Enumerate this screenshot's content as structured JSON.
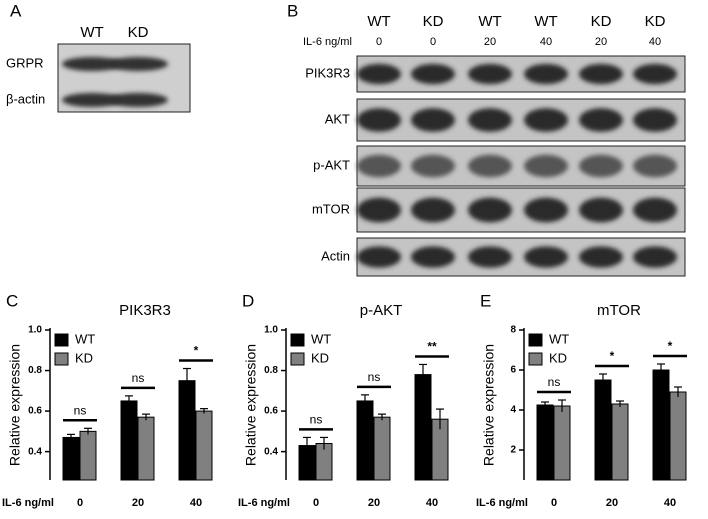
{
  "panel_a": {
    "label": "A",
    "lanes": [
      "WT",
      "KD"
    ],
    "rows": [
      "GRPR",
      "β-actin"
    ]
  },
  "panel_b": {
    "label": "B",
    "lanes": [
      "WT",
      "KD",
      "WT",
      "WT",
      "KD",
      "KD"
    ],
    "treatment_label": "IL-6 ng/ml",
    "doses": [
      0,
      0,
      20,
      40,
      20,
      40
    ],
    "rows": [
      "PIK3R3",
      "AKT",
      "p-AKT",
      "mTOR",
      "Actin"
    ]
  },
  "chart_data": [
    {
      "type": "bar",
      "panel": "C",
      "title": "PIK3R3",
      "y_label": "Relative expression",
      "x_label": "IL-6 ng/ml",
      "categories": [
        "0",
        "20",
        "40"
      ],
      "series": [
        {
          "name": "WT",
          "color": "#000000",
          "values": [
            0.47,
            0.65,
            0.75
          ],
          "errors": [
            0.015,
            0.025,
            0.06
          ]
        },
        {
          "name": "KD",
          "color": "#808080",
          "values": [
            0.5,
            0.57,
            0.6
          ],
          "errors": [
            0.015,
            0.015,
            0.012
          ]
        }
      ],
      "annotations": [
        "ns",
        "ns",
        "*"
      ],
      "ylim": [
        0.26,
        1.0
      ],
      "yticks": [
        0.4,
        0.6,
        0.8,
        {
          "value": 1,
          "label": "1.0"
        }
      ],
      "legend": "top-left"
    },
    {
      "type": "bar",
      "panel": "D",
      "title": "p-AKT",
      "y_label": "Relative expression",
      "x_label": "IL-6 ng/ml",
      "categories": [
        "0",
        "20",
        "40"
      ],
      "series": [
        {
          "name": "WT",
          "color": "#000000",
          "values": [
            0.43,
            0.65,
            0.78
          ],
          "errors": [
            0.04,
            0.03,
            0.05
          ]
        },
        {
          "name": "KD",
          "color": "#808080",
          "values": [
            0.44,
            0.57,
            0.56
          ],
          "errors": [
            0.03,
            0.015,
            0.05
          ]
        }
      ],
      "annotations": [
        "ns",
        "ns",
        "**"
      ],
      "ylim": [
        0.26,
        1.0
      ],
      "yticks": [
        0.4,
        0.6,
        0.8,
        {
          "value": 1,
          "label": "1.0"
        }
      ],
      "legend": "top-left"
    },
    {
      "type": "bar",
      "panel": "E",
      "title": "mTOR",
      "y_label": "Relative expression",
      "x_label": "IL-6 ng/ml",
      "categories": [
        "0",
        "20",
        "40"
      ],
      "series": [
        {
          "name": "WT",
          "color": "#000000",
          "values": [
            4.25,
            5.5,
            6.0
          ],
          "errors": [
            0.15,
            0.3,
            0.3
          ]
        },
        {
          "name": "KD",
          "color": "#808080",
          "values": [
            4.2,
            4.3,
            4.9
          ],
          "errors": [
            0.3,
            0.15,
            0.25
          ]
        }
      ],
      "annotations": [
        "ns",
        "*",
        "*"
      ],
      "ylim": [
        0.5,
        8
      ],
      "yticks": [
        2,
        4,
        6,
        8
      ],
      "legend": "top-left"
    }
  ]
}
